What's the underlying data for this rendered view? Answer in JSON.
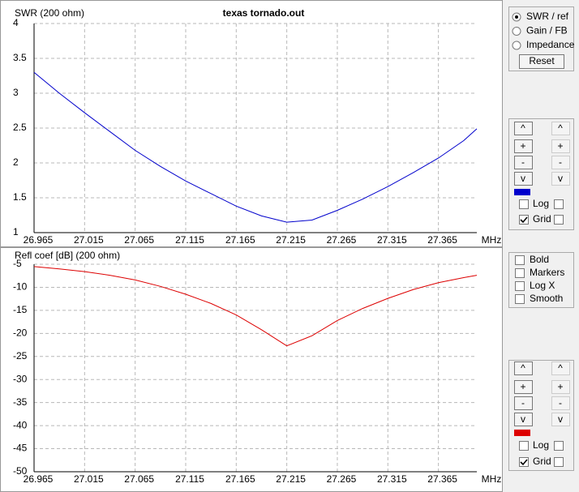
{
  "chart_data": [
    {
      "type": "line",
      "title": "texas tornado.out",
      "y_label": "SWR (200 ohm)",
      "x_unit": "MHz",
      "x": [
        26.965,
        26.99,
        27.015,
        27.04,
        27.065,
        27.09,
        27.115,
        27.14,
        27.165,
        27.19,
        27.215,
        27.24,
        27.265,
        27.29,
        27.315,
        27.34,
        27.365,
        27.39,
        27.403
      ],
      "series": [
        {
          "color": "#0000cc",
          "values": [
            3.3,
            3.0,
            2.72,
            2.45,
            2.18,
            1.95,
            1.74,
            1.56,
            1.38,
            1.24,
            1.15,
            1.18,
            1.32,
            1.48,
            1.66,
            1.86,
            2.07,
            2.32,
            2.49
          ]
        }
      ],
      "xlim": [
        26.965,
        27.403
      ],
      "xticks": [
        26.965,
        27.015,
        27.065,
        27.115,
        27.165,
        27.215,
        27.265,
        27.315,
        27.365
      ],
      "ylim": [
        1,
        4
      ],
      "yticks": [
        1,
        1.5,
        2,
        2.5,
        3,
        3.5,
        4
      ],
      "grid": true,
      "log": false
    },
    {
      "type": "line",
      "y_label": "Refl coef [dB] (200 ohm)",
      "x_unit": "MHz",
      "x": [
        26.965,
        26.99,
        27.015,
        27.04,
        27.065,
        27.09,
        27.115,
        27.14,
        27.165,
        27.19,
        27.215,
        27.24,
        27.265,
        27.29,
        27.315,
        27.34,
        27.365,
        27.39,
        27.403
      ],
      "series": [
        {
          "color": "#dd0000",
          "values": [
            -5.5,
            -6.0,
            -6.6,
            -7.4,
            -8.4,
            -9.8,
            -11.5,
            -13.5,
            -16.0,
            -19.2,
            -22.7,
            -20.5,
            -17.2,
            -14.6,
            -12.4,
            -10.5,
            -9.0,
            -7.9,
            -7.4
          ]
        }
      ],
      "xlim": [
        26.965,
        27.403
      ],
      "xticks": [
        26.965,
        27.015,
        27.065,
        27.115,
        27.165,
        27.215,
        27.265,
        27.315,
        27.365
      ],
      "ylim": [
        -50,
        -5
      ],
      "yticks": [
        -50,
        -45,
        -40,
        -35,
        -30,
        -25,
        -20,
        -15,
        -10,
        -5
      ],
      "grid": true,
      "log": false
    }
  ],
  "controls": {
    "view_options": [
      "SWR / ref",
      "Gain / FB",
      "Impedance"
    ],
    "view_selected": 0,
    "reset": "Reset",
    "scale_buttons": [
      "^",
      "+",
      "-",
      "v"
    ],
    "log": "Log",
    "grid": "Grid",
    "style_options": [
      "Bold",
      "Markers",
      "Log X",
      "Smooth"
    ]
  }
}
